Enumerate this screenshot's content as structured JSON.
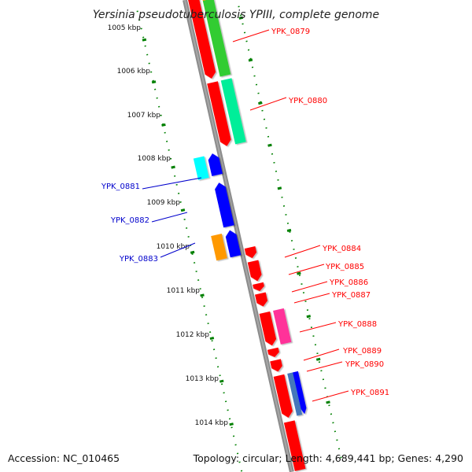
{
  "title": "Yersinia pseudotuberculosis YPIII, complete genome",
  "footer": {
    "accession": "Accession: NC_010465",
    "summary": "Topology: circular; Length: 4,689,441 bp; Genes: 4,290"
  },
  "scale": {
    "labels": [
      "1005 kbp",
      "1006 kbp",
      "1007 kbp",
      "1008 kbp",
      "1009 kbp",
      "1010 kbp",
      "1011 kbp",
      "1012 kbp",
      "1013 kbp",
      "1014 kbp"
    ]
  },
  "genes_forward": [
    {
      "name": "YPK_0879",
      "color": "#ff0000"
    },
    {
      "name": "YPK_0880",
      "color": "#ff0000"
    },
    {
      "name": "YPK_0884",
      "color": "#ff0000"
    },
    {
      "name": "YPK_0885",
      "color": "#ff0000"
    },
    {
      "name": "YPK_0886",
      "color": "#ff0000"
    },
    {
      "name": "YPK_0887",
      "color": "#ff0000"
    },
    {
      "name": "YPK_0888",
      "color": "#ff0000"
    },
    {
      "name": "YPK_0889",
      "color": "#ff0000"
    },
    {
      "name": "YPK_0890",
      "color": "#ff0000"
    },
    {
      "name": "YPK_0891",
      "color": "#ff0000"
    }
  ],
  "genes_reverse": [
    {
      "name": "YPK_0881",
      "color": "#0000ff"
    },
    {
      "name": "YPK_0882",
      "color": "#0000ff"
    },
    {
      "name": "YPK_0883",
      "color": "#0000ff"
    }
  ],
  "colors": {
    "backbone": "#8c8c8c",
    "forward_gene": "#ff0000",
    "reverse_gene": "#0000ff",
    "cog_green": "#33cc33",
    "cog_teal": "#00ee99",
    "cog_cyan": "#00ffff",
    "cog_orange": "#ff9900",
    "cog_magenta": "#ff3399",
    "cog_steel": "#4477bb",
    "scale_dots": "#008000",
    "forward_label": "#ff0000",
    "reverse_label": "#0000cc"
  }
}
